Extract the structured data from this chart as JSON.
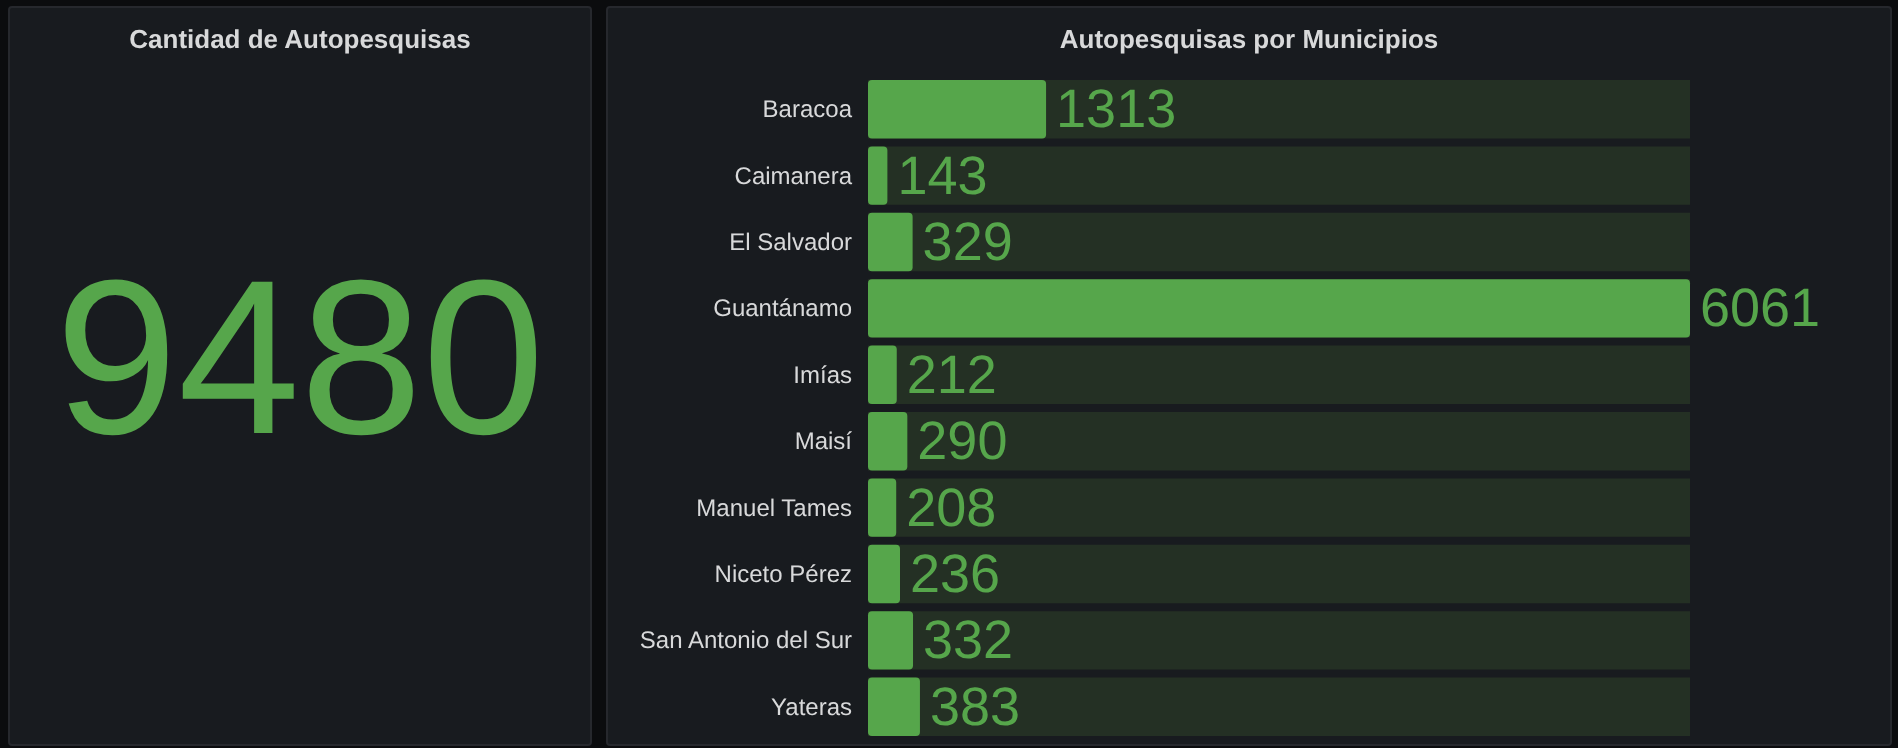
{
  "chart_data": [
    {
      "type": "other",
      "title": "Cantidad de Autopesquisas",
      "annotations": [
        "9480"
      ],
      "color": "#56a64b"
    },
    {
      "type": "bar",
      "orientation": "horizontal",
      "title": "Autopesquisas por Municipios",
      "categories": [
        "Baracoa",
        "Caimanera",
        "El Salvador",
        "Guantánamo",
        "Imías",
        "Maisí",
        "Manuel Tames",
        "Niceto Pérez",
        "San Antonio del Sur",
        "Yateras"
      ],
      "values": [
        1313,
        143,
        329,
        6061,
        212,
        290,
        208,
        236,
        332,
        383
      ],
      "color": "#56a64b",
      "data_labels": true,
      "tick_labels": "y"
    }
  ]
}
